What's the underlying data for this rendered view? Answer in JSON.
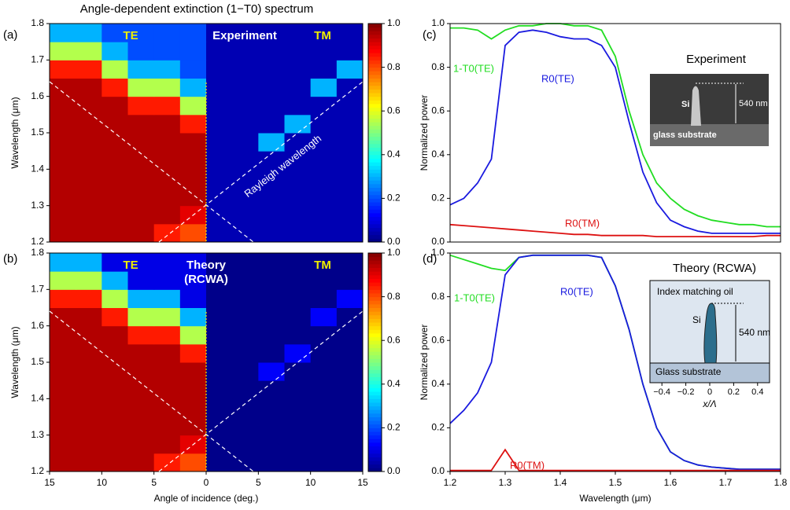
{
  "figure_title": "Angle-dependent extinction (1−T0) spectrum",
  "chart_data": [
    {
      "type": "heatmap",
      "panel": "(a)",
      "texts": {
        "te": "TE",
        "mode": "Experiment",
        "tm": "TM",
        "rayleigh": "Rayleigh wavelength"
      },
      "ylabel": "Wavelength (μm)",
      "x": [
        -13.75,
        -11.25,
        -8.75,
        -6.25,
        -3.75,
        -1.25,
        1.25,
        3.75,
        6.25,
        8.75,
        11.25,
        13.75
      ],
      "y": [
        1.225,
        1.275,
        1.325,
        1.375,
        1.425,
        1.475,
        1.525,
        1.575,
        1.625,
        1.675,
        1.725,
        1.775
      ],
      "z": [
        [
          0.95,
          0.95,
          0.95,
          0.95,
          0.85,
          0.8,
          0.05,
          0.05,
          0.05,
          0.05,
          0.05,
          0.05
        ],
        [
          0.95,
          0.95,
          0.95,
          0.95,
          0.95,
          0.9,
          0.05,
          0.05,
          0.05,
          0.05,
          0.05,
          0.05
        ],
        [
          0.95,
          0.95,
          0.95,
          0.95,
          0.95,
          0.95,
          0.05,
          0.05,
          0.05,
          0.05,
          0.05,
          0.05
        ],
        [
          0.95,
          0.95,
          0.95,
          0.95,
          0.95,
          0.95,
          0.05,
          0.05,
          0.05,
          0.05,
          0.05,
          0.05
        ],
        [
          0.95,
          0.95,
          0.95,
          0.95,
          0.95,
          0.95,
          0.05,
          0.05,
          0.05,
          0.05,
          0.05,
          0.05
        ],
        [
          0.95,
          0.95,
          0.95,
          0.95,
          0.95,
          0.95,
          0.05,
          0.05,
          0.3,
          0.05,
          0.05,
          0.05
        ],
        [
          0.95,
          0.95,
          0.95,
          0.95,
          0.95,
          0.85,
          0.05,
          0.05,
          0.05,
          0.3,
          0.05,
          0.05
        ],
        [
          0.95,
          0.95,
          0.95,
          0.85,
          0.85,
          0.55,
          0.05,
          0.05,
          0.05,
          0.05,
          0.05,
          0.05
        ],
        [
          0.95,
          0.95,
          0.85,
          0.55,
          0.55,
          0.3,
          0.05,
          0.05,
          0.05,
          0.05,
          0.3,
          0.05
        ],
        [
          0.85,
          0.85,
          0.55,
          0.3,
          0.3,
          0.2,
          0.05,
          0.05,
          0.05,
          0.05,
          0.05,
          0.3
        ],
        [
          0.55,
          0.55,
          0.3,
          0.2,
          0.2,
          0.2,
          0.05,
          0.05,
          0.05,
          0.05,
          0.05,
          0.05
        ],
        [
          0.3,
          0.3,
          0.2,
          0.2,
          0.2,
          0.2,
          0.05,
          0.05,
          0.05,
          0.05,
          0.05,
          0.05
        ]
      ],
      "xlim": [
        -15,
        15
      ],
      "ylim": [
        1.2,
        1.8
      ],
      "yticks": [
        1.2,
        1.3,
        1.4,
        1.5,
        1.6,
        1.7,
        1.8
      ],
      "colorbar": {
        "colormap": "jet",
        "lim": [
          0,
          1
        ],
        "ticks": [
          {
            "value": 0,
            "label": "0.0"
          },
          0.2,
          0.4,
          0.6,
          0.8,
          {
            "value": 1,
            "label": "1.0"
          }
        ]
      }
    },
    {
      "type": "heatmap",
      "panel": "(b)",
      "texts": {
        "te": "TE",
        "mode": "Theory",
        "mode2": "(RCWA)",
        "tm": "TM"
      },
      "ylabel": "Wavelength (μm)",
      "xlabel": "Angle of incidence (deg.)",
      "x": [
        -13.75,
        -11.25,
        -8.75,
        -6.25,
        -3.75,
        -1.25,
        1.25,
        3.75,
        6.25,
        8.75,
        11.25,
        13.75
      ],
      "y": [
        1.225,
        1.275,
        1.325,
        1.375,
        1.425,
        1.475,
        1.525,
        1.575,
        1.625,
        1.675,
        1.725,
        1.775
      ],
      "z": [
        [
          0.95,
          0.95,
          0.95,
          0.95,
          0.85,
          0.8,
          0.01,
          0.01,
          0.01,
          0.01,
          0.01,
          0.01
        ],
        [
          0.95,
          0.95,
          0.95,
          0.95,
          0.95,
          0.9,
          0.01,
          0.01,
          0.01,
          0.01,
          0.01,
          0.01
        ],
        [
          0.95,
          0.95,
          0.95,
          0.95,
          0.95,
          0.95,
          0.01,
          0.01,
          0.01,
          0.01,
          0.01,
          0.01
        ],
        [
          0.95,
          0.95,
          0.95,
          0.95,
          0.95,
          0.95,
          0.01,
          0.01,
          0.01,
          0.01,
          0.01,
          0.01
        ],
        [
          0.95,
          0.95,
          0.95,
          0.95,
          0.95,
          0.95,
          0.01,
          0.01,
          0.01,
          0.01,
          0.01,
          0.01
        ],
        [
          0.95,
          0.95,
          0.95,
          0.95,
          0.95,
          0.95,
          0.01,
          0.01,
          0.12,
          0.01,
          0.01,
          0.01
        ],
        [
          0.95,
          0.95,
          0.95,
          0.95,
          0.95,
          0.85,
          0.01,
          0.01,
          0.01,
          0.12,
          0.01,
          0.01
        ],
        [
          0.95,
          0.95,
          0.95,
          0.85,
          0.85,
          0.55,
          0.01,
          0.01,
          0.01,
          0.01,
          0.01,
          0.01
        ],
        [
          0.95,
          0.95,
          0.85,
          0.55,
          0.55,
          0.3,
          0.01,
          0.01,
          0.01,
          0.01,
          0.12,
          0.01
        ],
        [
          0.85,
          0.85,
          0.55,
          0.3,
          0.3,
          0.1,
          0.01,
          0.01,
          0.01,
          0.01,
          0.01,
          0.12
        ],
        [
          0.55,
          0.55,
          0.3,
          0.1,
          0.1,
          0.1,
          0.01,
          0.01,
          0.01,
          0.01,
          0.01,
          0.01
        ],
        [
          0.3,
          0.3,
          0.1,
          0.1,
          0.1,
          0.1,
          0.01,
          0.01,
          0.01,
          0.01,
          0.01,
          0.01
        ]
      ],
      "xlim": [
        -15,
        15
      ],
      "xticks": [
        {
          "value": -15,
          "label": "15"
        },
        {
          "value": -10,
          "label": "10"
        },
        {
          "value": -5,
          "label": "5"
        },
        0,
        5,
        10,
        15
      ],
      "ylim": [
        1.2,
        1.8
      ],
      "yticks": [
        1.2,
        1.3,
        1.4,
        1.5,
        1.6,
        1.7,
        1.8
      ],
      "colorbar": {
        "colormap": "jet",
        "lim": [
          0,
          1
        ],
        "ticks": [
          {
            "value": 0,
            "label": "0.0"
          },
          0.2,
          0.4,
          0.6,
          0.8,
          {
            "value": 1,
            "label": "1.0"
          }
        ]
      }
    },
    {
      "type": "line",
      "panel": "(c)",
      "ylabel": "Normalized power",
      "inset": {
        "title": "Experiment",
        "material": "Si",
        "height": "540 nm",
        "substrate": "glass substrate"
      },
      "x": [
        1.2,
        1.225,
        1.25,
        1.275,
        1.3,
        1.325,
        1.35,
        1.375,
        1.4,
        1.425,
        1.45,
        1.475,
        1.5,
        1.525,
        1.55,
        1.575,
        1.6,
        1.625,
        1.65,
        1.675,
        1.7,
        1.725,
        1.75,
        1.775,
        1.8
      ],
      "series": [
        {
          "name": "1-T0(TE)",
          "color": "#22dd22",
          "values": [
            0.98,
            0.98,
            0.97,
            0.93,
            0.97,
            0.99,
            0.99,
            1.0,
            1.0,
            0.99,
            0.99,
            0.97,
            0.85,
            0.6,
            0.4,
            0.27,
            0.2,
            0.15,
            0.12,
            0.1,
            0.09,
            0.08,
            0.08,
            0.07,
            0.07
          ]
        },
        {
          "name": "R0(TE)",
          "color": "#1a1adf",
          "values": [
            0.17,
            0.2,
            0.27,
            0.38,
            0.9,
            0.96,
            0.97,
            0.96,
            0.94,
            0.93,
            0.93,
            0.9,
            0.8,
            0.55,
            0.32,
            0.18,
            0.1,
            0.07,
            0.05,
            0.04,
            0.04,
            0.04,
            0.04,
            0.04,
            0.04
          ]
        },
        {
          "name": "R0(TM)",
          "color": "#dd1111",
          "values": [
            0.08,
            0.075,
            0.07,
            0.065,
            0.06,
            0.055,
            0.05,
            0.045,
            0.04,
            0.035,
            0.035,
            0.03,
            0.03,
            0.03,
            0.03,
            0.025,
            0.025,
            0.025,
            0.025,
            0.025,
            0.025,
            0.025,
            0.025,
            0.03,
            0.03
          ]
        }
      ],
      "xlim": [
        1.2,
        1.8
      ],
      "ylim": [
        0,
        1
      ],
      "yticks": [
        {
          "value": 0,
          "label": "0.0"
        },
        0.2,
        0.4,
        0.6,
        0.8,
        {
          "value": 1,
          "label": "1.0"
        }
      ]
    },
    {
      "type": "line",
      "panel": "(d)",
      "ylabel": "Normalized power",
      "xlabel": "Wavelength (μm)",
      "inset": {
        "title": "Theory (RCWA)",
        "oil": "Index matching oil",
        "material": "Si",
        "height": "540 nm",
        "substrate": "Glass substrate",
        "xlim": [
          -0.5,
          0.5
        ],
        "xticks": [
          {
            "value": -0.4,
            "label": "−0.4"
          },
          {
            "value": -0.2,
            "label": "−0.2"
          },
          0,
          0.2,
          0.4
        ],
        "xlabel": "x/Λ"
      },
      "x": [
        1.2,
        1.225,
        1.25,
        1.275,
        1.3,
        1.325,
        1.35,
        1.375,
        1.4,
        1.425,
        1.45,
        1.475,
        1.5,
        1.525,
        1.55,
        1.575,
        1.6,
        1.625,
        1.65,
        1.675,
        1.7,
        1.725,
        1.75,
        1.775,
        1.8
      ],
      "series": [
        {
          "name": "1-T0(TE)",
          "color": "#22dd22",
          "values": [
            0.99,
            0.97,
            0.95,
            0.93,
            0.92,
            0.98,
            0.99,
            0.99,
            0.99,
            0.99,
            0.99,
            0.98,
            0.85,
            0.65,
            0.4,
            0.2,
            0.09,
            0.05,
            0.03,
            0.02,
            0.015,
            0.01,
            0.01,
            0.01,
            0.01
          ]
        },
        {
          "name": "R0(TE)",
          "color": "#1a1adf",
          "values": [
            0.22,
            0.28,
            0.36,
            0.5,
            0.9,
            0.98,
            0.99,
            0.99,
            0.99,
            0.99,
            0.99,
            0.98,
            0.85,
            0.65,
            0.4,
            0.2,
            0.09,
            0.05,
            0.03,
            0.02,
            0.015,
            0.01,
            0.01,
            0.01,
            0.01
          ]
        },
        {
          "name": "R0(TM)",
          "color": "#dd1111",
          "values": [
            0.005,
            0.005,
            0.005,
            0.005,
            0.1,
            0.005,
            0.005,
            0.005,
            0.005,
            0.005,
            0.005,
            0.005,
            0.005,
            0.005,
            0.005,
            0.005,
            0.005,
            0.005,
            0.005,
            0.005,
            0.005,
            0.005,
            0.005,
            0.005,
            0.005
          ]
        }
      ],
      "xlim": [
        1.2,
        1.8
      ],
      "xticks": [
        1.2,
        1.3,
        1.4,
        1.5,
        1.6,
        1.7,
        1.8
      ],
      "ylim": [
        0,
        1
      ],
      "yticks": [
        {
          "value": 0,
          "label": "0.0"
        },
        0.2,
        0.4,
        0.6,
        0.8,
        {
          "value": 1,
          "label": "1.0"
        }
      ]
    }
  ]
}
